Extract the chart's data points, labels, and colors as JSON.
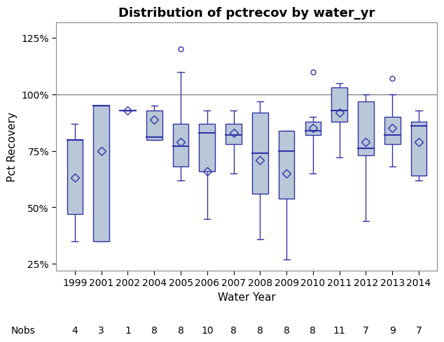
{
  "title": "Distribution of pctrecov by water_yr",
  "xlabel": "Water Year",
  "ylabel": "Pct Recovery",
  "nobs_label": "Nobs",
  "years": [
    1999,
    2001,
    2002,
    2004,
    2005,
    2006,
    2007,
    2008,
    2009,
    2010,
    2011,
    2012,
    2013,
    2014
  ],
  "nobs": [
    4,
    3,
    1,
    8,
    8,
    10,
    8,
    8,
    8,
    8,
    11,
    7,
    9,
    7
  ],
  "boxes": [
    {
      "q1": 47,
      "median": 80,
      "q3": 80,
      "mean": 63,
      "whislo": 35,
      "whishi": 87
    },
    {
      "q1": 35,
      "median": 95,
      "q3": 95,
      "mean": 75,
      "whislo": 35,
      "whishi": 95
    },
    {
      "q1": 93,
      "median": 93,
      "q3": 93,
      "mean": 93,
      "whislo": 93,
      "whishi": 93
    },
    {
      "q1": 80,
      "median": 81,
      "q3": 93,
      "mean": 89,
      "whislo": 80,
      "whishi": 95
    },
    {
      "q1": 68,
      "median": 77,
      "q3": 87,
      "mean": 79,
      "whislo": 62,
      "whishi": 110
    },
    {
      "q1": 66,
      "median": 83,
      "q3": 87,
      "mean": 66,
      "whislo": 45,
      "whishi": 93
    },
    {
      "q1": 78,
      "median": 82,
      "q3": 87,
      "mean": 83,
      "whislo": 65,
      "whishi": 93
    },
    {
      "q1": 56,
      "median": 74,
      "q3": 92,
      "mean": 71,
      "whislo": 36,
      "whishi": 97
    },
    {
      "q1": 54,
      "median": 75,
      "q3": 84,
      "mean": 65,
      "whislo": 27,
      "whishi": 84
    },
    {
      "q1": 82,
      "median": 84,
      "q3": 88,
      "mean": 85,
      "whislo": 65,
      "whishi": 90
    },
    {
      "q1": 88,
      "median": 93,
      "q3": 103,
      "mean": 92,
      "whislo": 72,
      "whishi": 105
    },
    {
      "q1": 73,
      "median": 76,
      "q3": 97,
      "mean": 79,
      "whislo": 44,
      "whishi": 100
    },
    {
      "q1": 78,
      "median": 82,
      "q3": 90,
      "mean": 85,
      "whislo": 68,
      "whishi": 100
    },
    {
      "q1": 64,
      "median": 86,
      "q3": 88,
      "mean": 79,
      "whislo": 62,
      "whishi": 93
    }
  ],
  "outliers": [
    [],
    [],
    [],
    [],
    [
      120
    ],
    [],
    [],
    [],
    [],
    [
      110
    ],
    [],
    [],
    [
      107
    ],
    []
  ],
  "ylim": [
    22,
    132
  ],
  "yticks": [
    25,
    50,
    75,
    100,
    125
  ],
  "ytick_labels": [
    "25%",
    "50%",
    "75%",
    "100%",
    "125%"
  ],
  "hline_y": 100,
  "box_facecolor": "#b8c8d8",
  "box_edgecolor": "#3333aa",
  "whisker_color": "#3333aa",
  "median_color": "#3333aa",
  "mean_color": "#3333aa",
  "flier_color": "#3333aa",
  "ref_line_color": "#888888",
  "background_color": "#ffffff",
  "title_fontsize": 13,
  "label_fontsize": 11,
  "tick_fontsize": 10,
  "nobs_fontsize": 10
}
